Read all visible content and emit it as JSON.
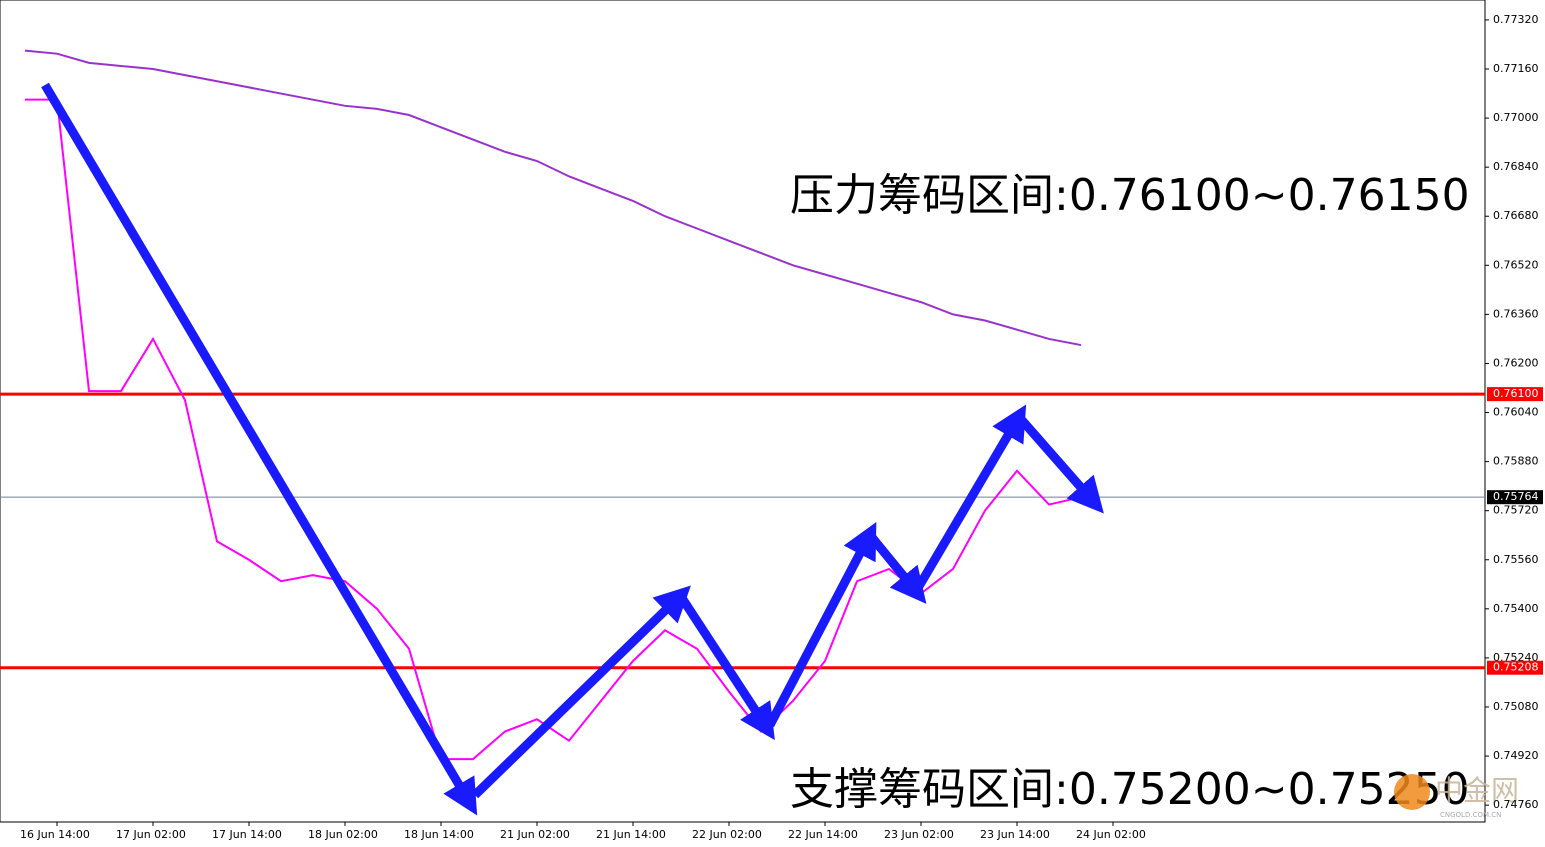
{
  "chart_data": {
    "type": "line",
    "categories": [
      null,
      "16 Jun 14:00",
      null,
      null,
      "17 Jun 02:00",
      null,
      null,
      "17 Jun 14:00",
      null,
      null,
      "18 Jun 02:00",
      null,
      null,
      "18 Jun 14:00",
      null,
      null,
      "21 Jun 02:00",
      null,
      null,
      "21 Jun 14:00",
      null,
      null,
      "22 Jun 02:00",
      null,
      null,
      "22 Jun 14:00",
      null,
      null,
      "23 Jun 02:00",
      null,
      null,
      "23 Jun 14:00",
      null,
      null,
      "24 Jun 02:00"
    ],
    "series": [
      {
        "color": "#ff00ff",
        "values": [
          0.7706,
          0.7706,
          0.7611,
          0.7611,
          0.7628,
          0.7608,
          0.7562,
          0.7556,
          0.7549,
          0.7551,
          0.7549,
          0.754,
          0.7527,
          0.7491,
          0.7491,
          0.75,
          0.7504,
          0.7497,
          0.751,
          0.7523,
          0.7533,
          0.7527,
          0.7513,
          0.75,
          0.751,
          0.7523,
          0.7549,
          0.7553,
          0.7545,
          0.7553,
          0.7572,
          0.7585,
          0.7574,
          0.75764,
          null
        ]
      },
      {
        "color": "#9932cc",
        "values": [
          0.7722,
          0.7721,
          0.7718,
          0.7717,
          0.7716,
          0.7714,
          0.7712,
          0.771,
          0.7708,
          0.7706,
          0.7704,
          0.7703,
          0.7701,
          0.7697,
          0.7693,
          0.7689,
          0.7686,
          0.7681,
          0.7677,
          0.7673,
          0.7668,
          0.7664,
          0.766,
          0.7656,
          0.7652,
          0.7649,
          0.7646,
          0.7643,
          0.764,
          0.7636,
          0.7634,
          0.7631,
          0.7628,
          0.7626,
          null
        ]
      }
    ],
    "ylim": [
      0.74705,
      0.77385
    ],
    "yticks": [
      {
        "value": 0.7732,
        "label": "0.77320"
      },
      {
        "value": 0.7716,
        "label": "0.77160"
      },
      {
        "value": 0.77,
        "label": "0.77000"
      },
      {
        "value": 0.7684,
        "label": "0.76840"
      },
      {
        "value": 0.7668,
        "label": "0.76680"
      },
      {
        "value": 0.7652,
        "label": "0.76520"
      },
      {
        "value": 0.7636,
        "label": "0.76360"
      },
      {
        "value": 0.762,
        "label": "0.76200"
      },
      {
        "value": 0.7604,
        "label": "0.76040"
      },
      {
        "value": 0.7588,
        "label": "0.75880"
      },
      {
        "value": 0.7572,
        "label": "0.75720"
      },
      {
        "value": 0.7556,
        "label": "0.75560"
      },
      {
        "value": 0.754,
        "label": "0.75400"
      },
      {
        "value": 0.7524,
        "label": "0.75240"
      },
      {
        "value": 0.7508,
        "label": "0.75080"
      },
      {
        "value": 0.7492,
        "label": "0.74920"
      },
      {
        "value": 0.7476,
        "label": "0.74760"
      }
    ],
    "levels": [
      {
        "value": 0.761,
        "label": "0.76100",
        "color": "#ff0000"
      },
      {
        "value": 0.75764,
        "label": "0.75764",
        "color": "#708090"
      },
      {
        "value": 0.75208,
        "label": "0.75208",
        "color": "#ff0000"
      }
    ],
    "annotations": [
      "压力筹码区间:0.76100~0.76150",
      "支撑筹码区间:0.75200~0.75250"
    ],
    "watermark": "中金网",
    "watermark_sub": "CNGOLD.COM.CN"
  }
}
